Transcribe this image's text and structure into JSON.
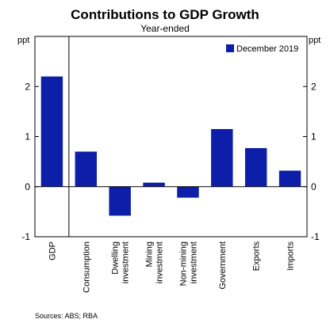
{
  "chart_data": {
    "type": "bar",
    "title": "Contributions to GDP Growth",
    "subtitle": "Year-ended",
    "y_unit_left": "ppt",
    "y_unit_right": "ppt",
    "ylim": [
      -1,
      3
    ],
    "yticks": [
      -1,
      0,
      1,
      2
    ],
    "categories": [
      [
        "GDP"
      ],
      [
        "Consumption"
      ],
      [
        "Dwelling",
        "investment"
      ],
      [
        "Mining",
        "investment"
      ],
      [
        "Non-mining",
        "investment"
      ],
      [
        "Government"
      ],
      [
        "Exports"
      ],
      [
        "Imports"
      ]
    ],
    "series": [
      {
        "name": "December 2019",
        "color": "#0d1fa8",
        "values": [
          2.2,
          0.7,
          -0.58,
          0.08,
          -0.22,
          1.15,
          0.77,
          0.32
        ]
      }
    ],
    "legend_position": "top-right",
    "grid": false,
    "divider_after_category": 0,
    "source": "Sources: ABS; RBA"
  }
}
